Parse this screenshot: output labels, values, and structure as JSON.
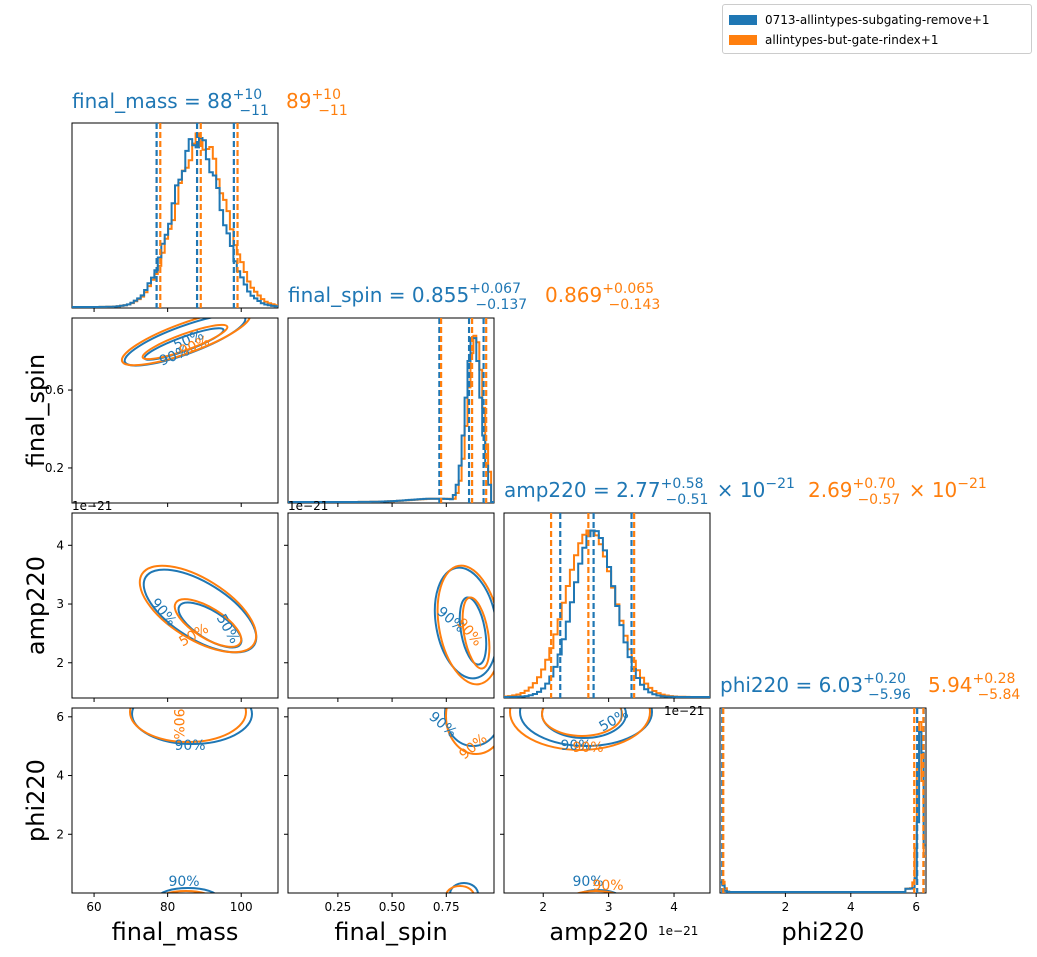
{
  "legend": {
    "entries": [
      {
        "label": "0713-allintypes-subgating-remove+1",
        "color": "#1f77b4"
      },
      {
        "label": "allintypes-but-gate-rindex+1",
        "color": "#ff7f0e"
      }
    ]
  },
  "chart_data": {
    "type": "corner",
    "series_colors": [
      "#1f77b4",
      "#ff7f0e"
    ],
    "series_names": [
      "0713-allintypes-subgating-remove+1",
      "allintypes-but-gate-rindex+1"
    ],
    "parameters": [
      "final_mass",
      "final_spin",
      "amp220",
      "phi220"
    ],
    "axis_labels": {
      "final_mass": "final_mass",
      "final_spin": "final_spin",
      "amp220": "amp220",
      "phi220": "phi220"
    },
    "ranges": {
      "final_mass": [
        54,
        110
      ],
      "final_spin": [
        0.02,
        0.97
      ],
      "amp220": [
        1.4,
        4.55
      ],
      "phi220": [
        0,
        6.3
      ]
    },
    "ticks": {
      "final_mass": [
        60,
        80,
        100
      ],
      "final_spin_x": [
        0.25,
        0.5,
        0.75
      ],
      "final_spin_y": [
        0.2,
        0.6
      ],
      "amp220_x": [
        2,
        3,
        4
      ],
      "amp220_y": [
        2,
        3,
        4
      ],
      "phi220_x": [
        2,
        4,
        6
      ],
      "phi220_y": [
        2,
        4,
        6
      ]
    },
    "tick_labels": {
      "final_mass": [
        "60",
        "80",
        "100"
      ],
      "final_spin_x": [
        "0.25",
        "0.50",
        "0.75"
      ],
      "final_spin_y": [
        "0.6",
        "0.2"
      ],
      "amp220_x": [
        "2",
        "3",
        "4"
      ],
      "amp220_y": [
        "4",
        "3",
        "2"
      ],
      "phi220_x": [
        "2",
        "4",
        "6"
      ],
      "phi220_y": [
        "6",
        "4",
        "2"
      ]
    },
    "offset_text": "1e−21",
    "titles": [
      {
        "param": "final_mass",
        "series": [
          {
            "prefix": "final_mass = ",
            "median": "88",
            "plus": "+10",
            "minus": "−11",
            "suffix": ""
          },
          {
            "prefix": "",
            "median": "89",
            "plus": "+10",
            "minus": "−11",
            "suffix": ""
          }
        ]
      },
      {
        "param": "final_spin",
        "series": [
          {
            "prefix": "final_spin = ",
            "median": "0.855",
            "plus": "+0.067",
            "minus": "−0.137",
            "suffix": ""
          },
          {
            "prefix": "",
            "median": "0.869",
            "plus": "+0.065",
            "minus": "−0.143",
            "suffix": ""
          }
        ]
      },
      {
        "param": "amp220",
        "series": [
          {
            "prefix": "amp220 = ",
            "median": "2.77",
            "plus": "+0.58",
            "minus": "−0.51",
            "suffix": " × 10",
            "exp": "−21"
          },
          {
            "prefix": "",
            "median": "2.69",
            "plus": "+0.70",
            "minus": "−0.57",
            "suffix": " × 10",
            "exp": "−21"
          }
        ]
      },
      {
        "param": "phi220",
        "series": [
          {
            "prefix": "phi220 = ",
            "median": "6.03",
            "plus": "+0.20",
            "minus": "−5.96",
            "suffix": ""
          },
          {
            "prefix": "",
            "median": "5.94",
            "plus": "+0.28",
            "minus": "−5.84",
            "suffix": ""
          }
        ]
      }
    ],
    "marginals": {
      "final_mass": [
        {
          "median": 88,
          "lo": 77,
          "hi": 98
        },
        {
          "median": 89,
          "lo": 78,
          "hi": 99
        }
      ],
      "final_spin": [
        {
          "median": 0.855,
          "lo": 0.718,
          "hi": 0.922
        },
        {
          "median": 0.869,
          "lo": 0.726,
          "hi": 0.934
        }
      ],
      "amp220": [
        {
          "median": 2.77,
          "lo": 2.26,
          "hi": 3.35
        },
        {
          "median": 2.69,
          "lo": 2.12,
          "hi": 3.39
        }
      ],
      "phi220": [
        {
          "median": 6.03,
          "lo": 0.07,
          "hi": 6.23
        },
        {
          "median": 5.94,
          "lo": 0.1,
          "hi": 6.22
        }
      ]
    },
    "contour_labels": [
      "50%",
      "90%"
    ]
  }
}
